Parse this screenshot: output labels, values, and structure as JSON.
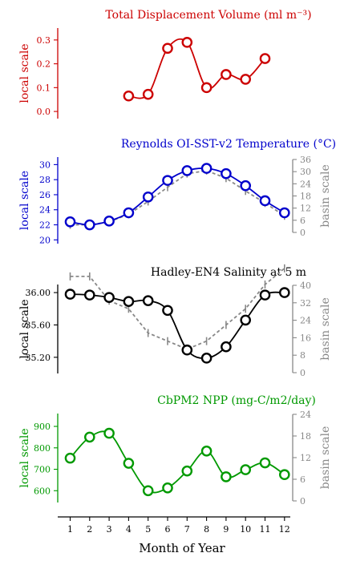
{
  "x_axis": {
    "label": "Month of Year",
    "ticks": [
      1,
      2,
      3,
      4,
      5,
      6,
      7,
      8,
      9,
      10,
      11,
      12
    ]
  },
  "local_scale_label": "local scale",
  "basin_scale_label": "basin scale",
  "chart_data": [
    {
      "type": "line",
      "title": "Total Displacement Volume (ml m⁻³)",
      "color": "#cc0000",
      "x": [
        4,
        5,
        6,
        7,
        8,
        9,
        10,
        11
      ],
      "local_y": {
        "label": "local scale",
        "ticks": [
          "0.0",
          "0.1",
          "0.2",
          "0.3"
        ],
        "tick_values": [
          0,
          0.1,
          0.2,
          0.3
        ],
        "range": [
          -0.03,
          0.35
        ]
      },
      "series": [
        {
          "values": [
            0.065,
            0.072,
            0.265,
            0.29,
            0.1,
            0.155,
            0.135,
            0.222
          ],
          "marker": "circle",
          "style": "solid"
        }
      ]
    },
    {
      "type": "line",
      "title": "Reynolds OI-SST-v2 Temperature (°C)",
      "color": "#0000cc",
      "basin_color": "#888888",
      "x": [
        1,
        2,
        3,
        4,
        5,
        6,
        7,
        8,
        9,
        10,
        11,
        12
      ],
      "local_y": {
        "label": "local scale",
        "ticks": [
          "20",
          "22",
          "24",
          "26",
          "28",
          "30"
        ],
        "tick_values": [
          20,
          22,
          24,
          26,
          28,
          30
        ],
        "range": [
          19.5,
          31
        ]
      },
      "basin_y": {
        "label": "basin scale",
        "ticks": [
          "0",
          "6",
          "12",
          "18",
          "24",
          "30",
          "36"
        ],
        "tick_values": [
          0,
          6,
          12,
          18,
          24,
          30,
          36
        ],
        "range": [
          0,
          36
        ]
      },
      "series": [
        {
          "values": [
            22.4,
            22.0,
            22.5,
            23.6,
            25.7,
            27.9,
            29.2,
            29.5,
            28.8,
            27.2,
            25.2,
            23.6
          ],
          "axis": "local",
          "marker": "circle",
          "style": "solid"
        },
        {
          "values": [
            22,
            22,
            22.4,
            23.4,
            25.1,
            27,
            28.8,
            29.2,
            28.2,
            26.5,
            24.9,
            23.2
          ],
          "axis": "basin",
          "marker": "tick",
          "style": "dashed"
        }
      ]
    },
    {
      "type": "line",
      "title": "Hadley-EN4 Salinity at 5 m",
      "color": "#000000",
      "basin_color": "#888888",
      "x": [
        1,
        2,
        3,
        4,
        5,
        6,
        7,
        8,
        9,
        10,
        11,
        12
      ],
      "local_y": {
        "label": "local scale",
        "ticks": [
          "35.20",
          "35.60",
          "36.00"
        ],
        "tick_values": [
          35.2,
          35.6,
          36.0
        ],
        "range": [
          35.0,
          36.1
        ]
      },
      "basin_y": {
        "label": "basin scale",
        "ticks": [
          "0",
          "8",
          "16",
          "24",
          "32",
          "40"
        ],
        "tick_values": [
          0,
          8,
          16,
          24,
          32,
          40
        ],
        "range": [
          0,
          40
        ]
      },
      "series": [
        {
          "values": [
            35.98,
            35.97,
            35.94,
            35.89,
            35.9,
            35.78,
            35.29,
            35.19,
            35.33,
            35.66,
            35.97,
            36.0
          ],
          "axis": "local",
          "marker": "circle",
          "style": "solid"
        },
        {
          "values": [
            36.2,
            36.2,
            35.9,
            35.8,
            35.5,
            35.4,
            35.3,
            35.4,
            35.6,
            35.8,
            36.1,
            36.3
          ],
          "axis": "basin",
          "marker": "tick",
          "style": "dashed"
        }
      ]
    },
    {
      "type": "line",
      "title": "CbPM2 NPP (mg-C/m2/day)",
      "color": "#009900",
      "x": [
        1,
        2,
        3,
        4,
        5,
        6,
        7,
        8,
        9,
        10,
        11,
        12
      ],
      "local_y": {
        "label": "local scale",
        "ticks": [
          "600",
          "700",
          "800",
          "900"
        ],
        "tick_values": [
          600,
          700,
          800,
          900
        ],
        "range": [
          545,
          960
        ]
      },
      "basin_y": {
        "label": "basin scale",
        "ticks": [
          "0",
          "6",
          "12",
          "18",
          "24"
        ],
        "tick_values": [
          0,
          6,
          12,
          18,
          24
        ],
        "range": [
          0,
          24
        ]
      },
      "series": [
        {
          "values": [
            752,
            850,
            868,
            728,
            600,
            613,
            692,
            785,
            665,
            698,
            730,
            675
          ],
          "axis": "local",
          "marker": "circle",
          "style": "solid"
        }
      ]
    }
  ]
}
